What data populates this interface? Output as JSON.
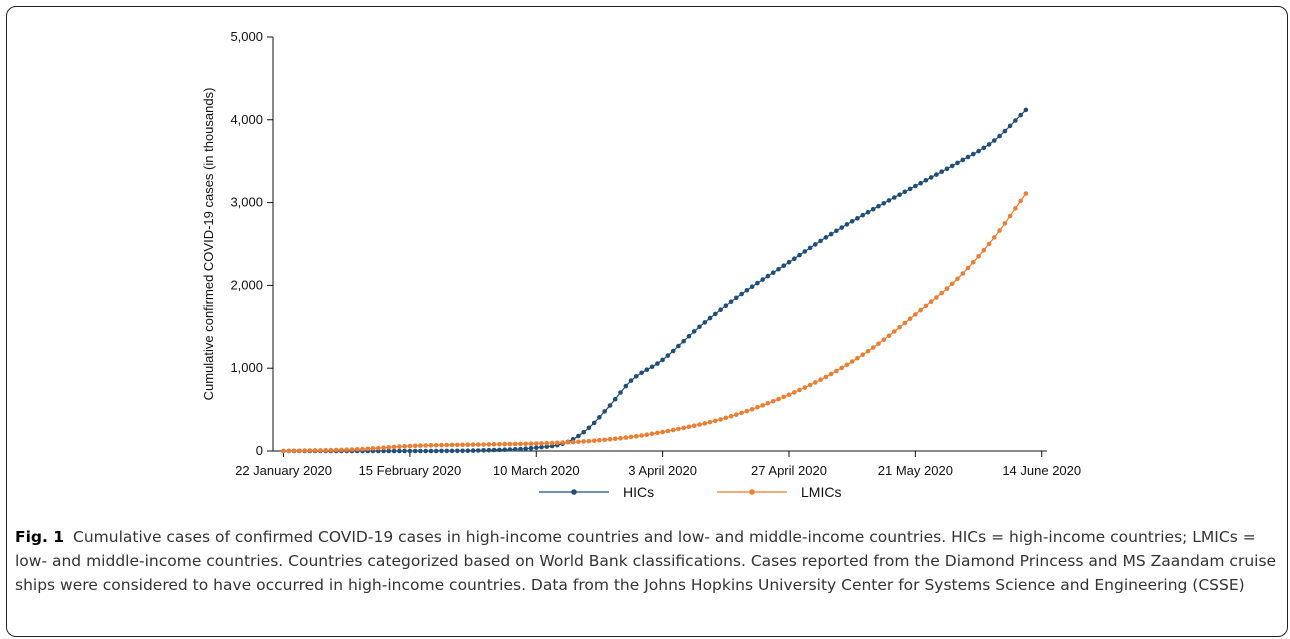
{
  "chart_data": {
    "type": "line",
    "title": "",
    "xlabel": "",
    "ylabel": "Cumulative  confirmed COVID-19 cases (in thousands)",
    "ylim": [
      0,
      5000
    ],
    "yticks": [
      0,
      1000,
      2000,
      3000,
      4000,
      5000
    ],
    "ytick_labels": [
      "0",
      "1,000",
      "2,000",
      "3,000",
      "4,000",
      "5,000"
    ],
    "xlim_days_from_jan22": [
      -2,
      145
    ],
    "xticks": [
      {
        "label": "22 January 2020",
        "day": 0
      },
      {
        "label": "15 February 2020",
        "day": 24
      },
      {
        "label": "10 March 2020",
        "day": 48
      },
      {
        "label": "3 April 2020",
        "day": 72
      },
      {
        "label": "27 April 2020",
        "day": 96
      },
      {
        "label": "21 May 2020",
        "day": 120
      },
      {
        "label": "14 June 2020",
        "day": 144
      }
    ],
    "grid": false,
    "legend_position": "bottom",
    "markers": "dots",
    "series": [
      {
        "name": "HICs",
        "color": "#1f4e79",
        "points": [
          [
            "22 January 2020",
            0
          ],
          [
            "15 February 2020",
            0
          ],
          [
            "1 March 2020",
            10
          ],
          [
            "10 March 2020",
            40
          ],
          [
            "16 March 2020",
            110
          ],
          [
            "20 March 2020",
            280
          ],
          [
            "24 March 2020",
            550
          ],
          [
            "28 March 2020",
            850
          ],
          [
            "3 April 2020",
            1100
          ],
          [
            "10 April 2020",
            1500
          ],
          [
            "17 April 2020",
            1850
          ],
          [
            "27 April 2020",
            2280
          ],
          [
            "5 May 2020",
            2620
          ],
          [
            "13 May 2020",
            2920
          ],
          [
            "21 May 2020",
            3200
          ],
          [
            "29 May 2020",
            3480
          ],
          [
            "5 June 2020",
            3750
          ],
          [
            "11 June 2020",
            4120
          ]
        ]
      },
      {
        "name": "LMICs",
        "color": "#ed7d31",
        "points": [
          [
            "22 January 2020",
            0
          ],
          [
            "5 February 2020",
            20
          ],
          [
            "15 February 2020",
            60
          ],
          [
            "1 March 2020",
            80
          ],
          [
            "10 March 2020",
            90
          ],
          [
            "20 March 2020",
            120
          ],
          [
            "28 March 2020",
            170
          ],
          [
            "3 April 2020",
            230
          ],
          [
            "15 April 2020",
            400
          ],
          [
            "27 April 2020",
            680
          ],
          [
            "5 May 2020",
            930
          ],
          [
            "13 May 2020",
            1250
          ],
          [
            "21 May 2020",
            1650
          ],
          [
            "29 May 2020",
            2080
          ],
          [
            "5 June 2020",
            2580
          ],
          [
            "11 June 2020",
            3110
          ]
        ]
      }
    ]
  },
  "caption": {
    "label": "Fig. 1",
    "text": "Cumulative cases of confirmed COVID-19 cases in high-income countries and low- and middle-income countries. HICs = high-income countries; LMICs = low- and middle-income countries. Countries categorized based on World Bank classifications. Cases reported from the Diamond Princess and MS Zaandam cruise ships were considered to have occurred in high-income countries. Data from the Johns Hopkins University Center for Systems Science and Engineering (CSSE)"
  }
}
